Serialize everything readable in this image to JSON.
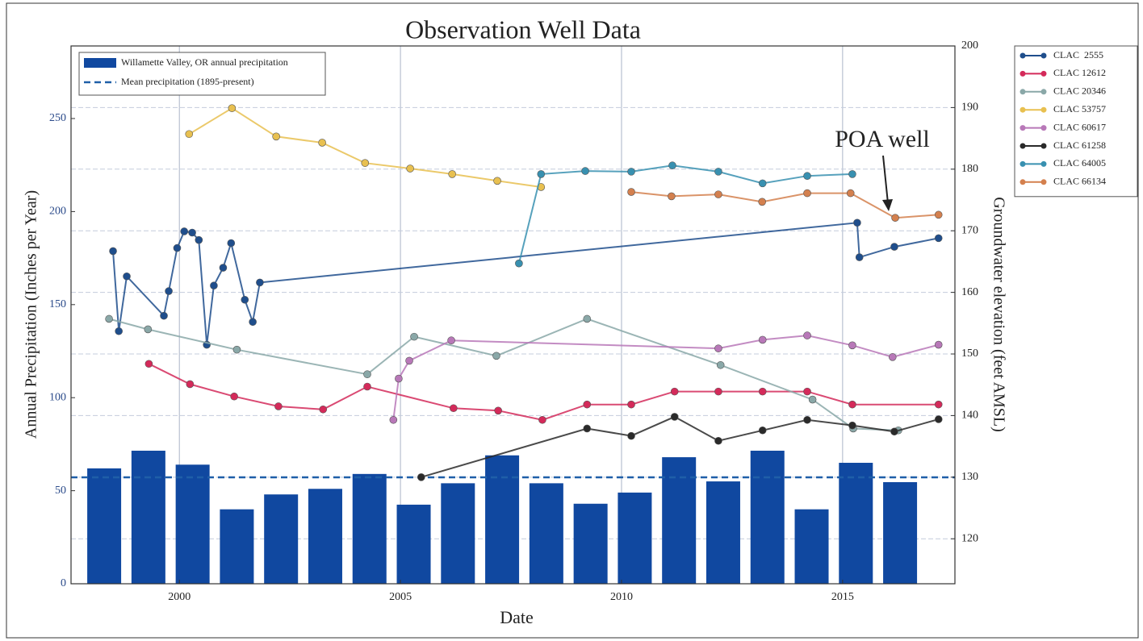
{
  "chart_data": {
    "type": "combo",
    "title": "Observation Well Data",
    "xlabel": "Date",
    "ylabel": "Annual Precipitation (Inches per Year)",
    "y2label": "Groundwater elevation (feet AMSL)",
    "xlim": [
      1997.55,
      2017.54
    ],
    "xticks": [
      2000,
      2005,
      2010,
      2015
    ],
    "ylim": [
      0,
      289
    ],
    "yticks": [
      0,
      50,
      100,
      150,
      200,
      250
    ],
    "y2lim": [
      112.7,
      200
    ],
    "y2ticks": [
      120,
      130,
      140,
      150,
      160,
      170,
      180,
      190,
      200
    ],
    "grid": true,
    "legend": "upper left",
    "series_legend": "outside right",
    "bar": {
      "name": "Willamette Valley, OR annual precipitation",
      "color": "#1048a0",
      "x": [
        1998.3,
        1999.3,
        2000.3,
        2001.3,
        2002.3,
        2003.3,
        2004.3,
        2005.3,
        2006.3,
        2007.3,
        2008.3,
        2009.3,
        2010.3,
        2011.3,
        2012.3,
        2013.3,
        2014.3,
        2015.3,
        2016.3
      ],
      "values": [
        62,
        71.5,
        64,
        40,
        48,
        51,
        59,
        42.5,
        54,
        69,
        54,
        43,
        49,
        68,
        55,
        71.5,
        40,
        65,
        54.6
      ]
    },
    "hline": {
      "name": "Mean precipitation (1895-present)",
      "color": "#1f5fa8",
      "value": 57.2
    },
    "series": [
      {
        "name": "CLAC  2555",
        "color": "#1f4e8c",
        "axis": "y2",
        "x": [
          1998.5,
          1998.63,
          1998.81,
          1999.65,
          1999.76,
          1999.95,
          2000.11,
          2000.29,
          2000.44,
          2000.62,
          2000.78,
          2000.99,
          2001.17,
          2001.48,
          2001.66,
          2001.82,
          2015.33,
          2015.38,
          2016.17,
          2017.17
        ],
        "values": [
          166.7,
          153.7,
          162.6,
          156.2,
          160.2,
          167.2,
          169.9,
          169.7,
          168.5,
          151.5,
          161.1,
          164.0,
          168.0,
          158.8,
          155.2,
          161.6,
          171.3,
          165.7,
          167.4,
          168.8
        ]
      },
      {
        "name": "CLAC 12612",
        "color": "#d42a5a",
        "axis": "y2",
        "x": [
          1999.31,
          2000.24,
          2001.24,
          2002.24,
          2003.25,
          2004.25,
          2006.2,
          2007.21,
          2008.21,
          2009.22,
          2010.22,
          2011.2,
          2012.19,
          2013.19,
          2014.2,
          2015.22,
          2017.17
        ],
        "values": [
          148.4,
          145.1,
          143.1,
          141.5,
          141.0,
          144.7,
          141.2,
          140.8,
          139.3,
          141.8,
          141.8,
          143.9,
          143.9,
          143.9,
          143.9,
          141.8,
          141.8
        ]
      },
      {
        "name": "CLAC 20346",
        "color": "#8aa8a8",
        "axis": "y2",
        "x": [
          1998.41,
          1999.29,
          2001.3,
          2004.25,
          2005.31,
          2007.17,
          2009.22,
          2012.24,
          2014.32,
          2015.24,
          2016.26
        ],
        "values": [
          155.7,
          154.0,
          150.7,
          146.7,
          152.8,
          149.7,
          155.7,
          148.2,
          142.6,
          137.9,
          137.6
        ]
      },
      {
        "name": "CLAC 53757",
        "color": "#e8c050",
        "axis": "y2",
        "x": [
          2000.22,
          2001.19,
          2002.19,
          2003.23,
          2004.2,
          2005.22,
          2006.17,
          2007.19,
          2008.18
        ],
        "values": [
          185.7,
          189.9,
          185.3,
          184.3,
          181.0,
          180.1,
          179.2,
          178.1,
          177.1
        ]
      },
      {
        "name": "CLAC 60617",
        "color": "#b878b8",
        "axis": "y2",
        "x": [
          2004.84,
          2004.96,
          2005.2,
          2006.15,
          2012.19,
          2013.19,
          2014.2,
          2015.22,
          2016.13,
          2017.17
        ],
        "values": [
          139.3,
          146.0,
          148.9,
          152.2,
          150.9,
          152.3,
          153.0,
          151.4,
          149.5,
          151.5
        ]
      },
      {
        "name": "CLAC 61258",
        "color": "#2a2a2a",
        "axis": "y2",
        "x": [
          2005.47,
          2009.22,
          2010.22,
          2011.2,
          2012.19,
          2013.19,
          2014.2,
          2015.22,
          2016.17,
          2017.17
        ],
        "values": [
          130.0,
          137.9,
          136.7,
          139.8,
          135.9,
          137.6,
          139.3,
          138.4,
          137.4,
          139.4
        ]
      },
      {
        "name": "CLAC 64005",
        "color": "#3890b0",
        "axis": "y2",
        "x": [
          2007.68,
          2008.18,
          2009.18,
          2010.22,
          2011.15,
          2012.19,
          2013.19,
          2014.2,
          2015.22
        ],
        "values": [
          164.7,
          179.2,
          179.7,
          179.6,
          180.6,
          179.6,
          177.7,
          178.9,
          179.2
        ]
      },
      {
        "name": "CLAC 66134",
        "color": "#d4804e",
        "axis": "y2",
        "x": [
          2010.22,
          2011.13,
          2012.19,
          2013.18,
          2014.2,
          2015.18,
          2016.19,
          2017.17
        ],
        "values": [
          176.3,
          175.6,
          175.9,
          174.7,
          176.1,
          176.1,
          172.1,
          172.6
        ]
      }
    ],
    "annotation": "POA well"
  }
}
